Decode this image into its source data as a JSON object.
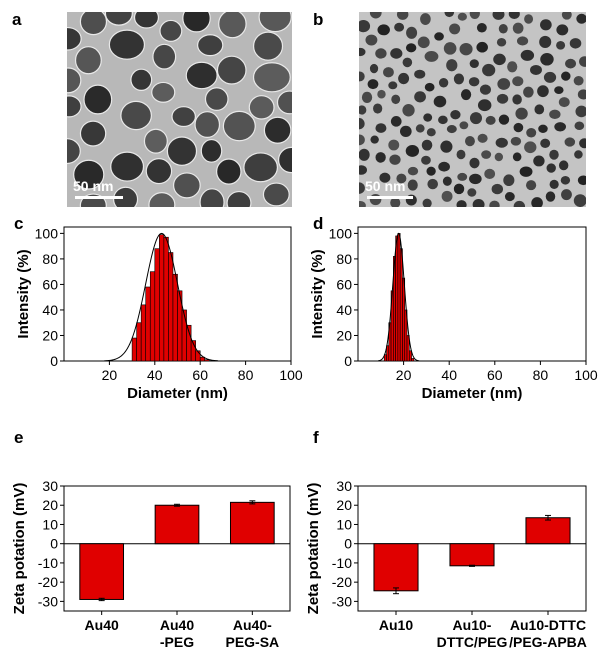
{
  "panels": {
    "a": "a",
    "b": "b",
    "c": "c",
    "d": "d",
    "e": "e",
    "f": "f"
  },
  "tem": {
    "a": {
      "scale_label": "50 nm"
    },
    "b": {
      "scale_label": "50 nm"
    }
  },
  "chart_data": [
    {
      "id": "c",
      "type": "bar",
      "xlabel": "Diameter (nm)",
      "ylabel": "Intensity (%)",
      "xlim": [
        0,
        100
      ],
      "ylim": [
        0,
        105
      ],
      "xticks": [
        20,
        40,
        60,
        80,
        100
      ],
      "yticks": [
        0,
        20,
        40,
        60,
        80,
        100
      ],
      "bar_color": "#e00000",
      "bin_width": 2,
      "x": [
        31,
        33,
        35,
        37,
        39,
        41,
        43,
        45,
        47,
        49,
        51,
        53,
        55,
        57,
        59,
        61,
        63
      ],
      "values": [
        18,
        30,
        44,
        58,
        70,
        88,
        99,
        97,
        85,
        68,
        55,
        40,
        28,
        16,
        8,
        3,
        1
      ],
      "fit": {
        "center": 43,
        "sigma": 7
      }
    },
    {
      "id": "d",
      "type": "bar",
      "xlabel": "Diameter (nm)",
      "ylabel": "Intensity (%)",
      "xlim": [
        0,
        100
      ],
      "ylim": [
        0,
        105
      ],
      "xticks": [
        20,
        40,
        60,
        80,
        100
      ],
      "yticks": [
        0,
        20,
        40,
        60,
        80,
        100
      ],
      "bar_color": "#e00000",
      "bin_width": 1,
      "x": [
        12,
        13,
        14,
        15,
        16,
        17,
        18,
        19,
        20,
        21,
        22,
        23,
        24
      ],
      "values": [
        5,
        12,
        30,
        55,
        82,
        98,
        100,
        88,
        65,
        40,
        20,
        8,
        2
      ],
      "fit": {
        "center": 17.8,
        "sigma": 2.5
      }
    },
    {
      "id": "e",
      "type": "bar",
      "ylabel": "Zeta potation (mV)",
      "ylim": [
        -35,
        30
      ],
      "yticks": [
        -30,
        -20,
        -10,
        0,
        10,
        20,
        30
      ],
      "bar_color": "#e00000",
      "categories": [
        "Au40",
        "Au40\n-PEG",
        "Au40-\nPEG-SA"
      ],
      "values": [
        -29,
        20,
        21.5
      ],
      "errors": [
        0.6,
        0.5,
        0.8
      ]
    },
    {
      "id": "f",
      "type": "bar",
      "ylabel": "Zeta potation (mV)",
      "ylim": [
        -35,
        30
      ],
      "yticks": [
        -30,
        -20,
        -10,
        0,
        10,
        20,
        30
      ],
      "bar_color": "#e00000",
      "categories": [
        "Au10",
        "Au10-\nDTTC/PEG",
        "Au10-DTTC\n/PEG-APBA"
      ],
      "values": [
        -24.5,
        -11.5,
        13.5
      ],
      "errors": [
        1.5,
        0.3,
        1.2
      ]
    }
  ]
}
